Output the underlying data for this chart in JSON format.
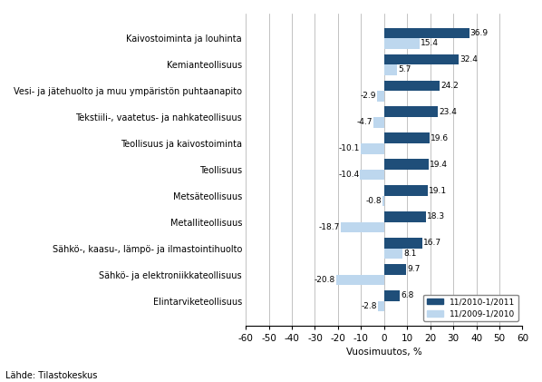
{
  "categories": [
    "Kaivostoiminta ja louhinta",
    "Kemianteollisuus",
    "Vesi- ja jätehuolto ja muu ympäristön puhtaanapito",
    "Tekstiili-, vaatetus- ja nahkateollisuus",
    "Teollisuus ja kaivostoiminta",
    "Teollisuus",
    "Metsäteollisuus",
    "Metalliteollisuus",
    "Sähkö-, kaasu-, lämpö- ja ilmastointihuolto",
    "Sähkö- ja elektroniikkateollisuus",
    "Elintarviketeollisuus"
  ],
  "values_2010_2011": [
    36.9,
    32.4,
    24.2,
    23.4,
    19.6,
    19.4,
    19.1,
    18.3,
    16.7,
    9.7,
    6.8
  ],
  "values_2009_2010": [
    15.4,
    5.7,
    -2.9,
    -4.7,
    -10.1,
    -10.4,
    -0.8,
    -18.7,
    8.1,
    -20.8,
    -2.8
  ],
  "color_2010_2011": "#1F4E79",
  "color_2009_2010": "#BDD7EE",
  "xlim": [
    -60,
    60
  ],
  "xticks": [
    -60,
    -50,
    -40,
    -30,
    -20,
    -10,
    0,
    10,
    20,
    30,
    40,
    50,
    60
  ],
  "xlabel": "Vuosimuutos, %",
  "legend_label_1": "11/2010-1/2011",
  "legend_label_2": "11/2009-1/2010",
  "source_text": "Lähde: Tilastokeskus",
  "bar_height": 0.4,
  "label_fontsize": 7.0,
  "tick_fontsize": 7.5,
  "value_fontsize": 6.5
}
